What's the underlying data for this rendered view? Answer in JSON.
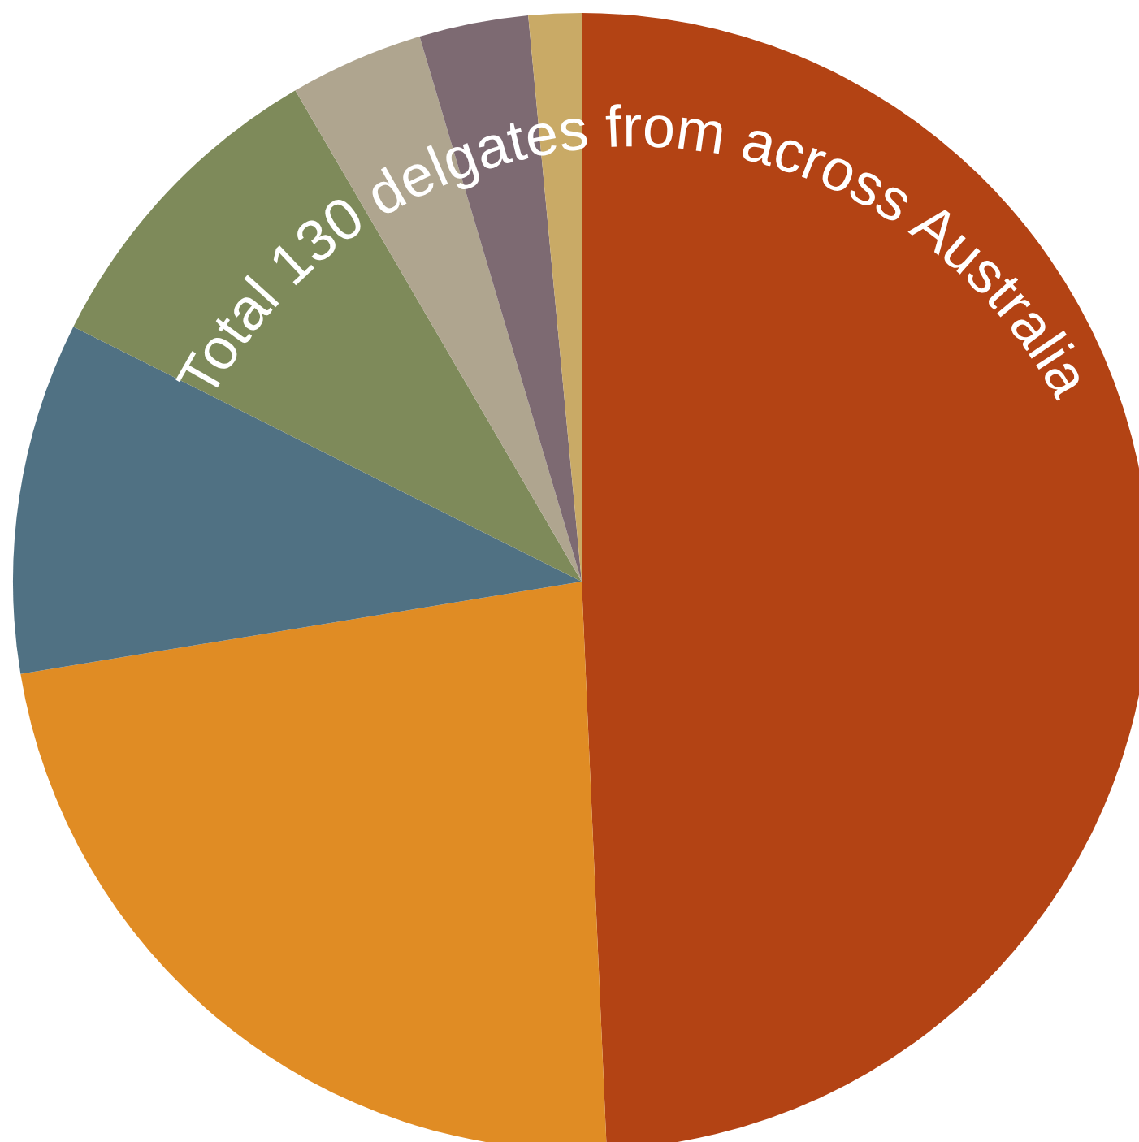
{
  "chart_data": {
    "type": "pie",
    "title": "Total 130 delgates from across Australia",
    "categories": [
      null,
      null,
      null,
      null,
      null,
      null,
      null
    ],
    "values": [
      49.3,
      23.1,
      10,
      9.2,
      3.8,
      3.1,
      1.5
    ],
    "colors": [
      "#b34314",
      "#e08c24",
      "#507183",
      "#7e8a5a",
      "#afa58f",
      "#7d6a72",
      "#c9aa66"
    ]
  }
}
